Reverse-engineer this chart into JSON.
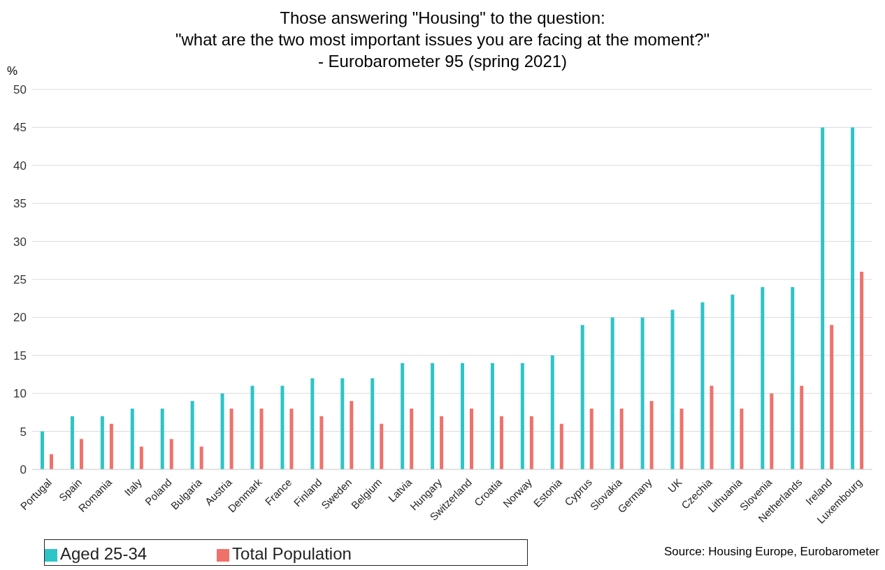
{
  "chart_data": {
    "type": "bar",
    "title": "Those answering \"Housing\" to the question:\n\"what are the two most important issues you are facing at the moment?\"\n- Eurobarometer 95 (spring 2021)",
    "ylabel": "%",
    "categories": [
      "Portugal",
      "Spain",
      "Romania",
      "Italy",
      "Poland",
      "Bulgaria",
      "Austria",
      "Denmark",
      "France",
      "Finland",
      "Sweden",
      "Belgium",
      "Latvia",
      "Hungary",
      "Switzerland",
      "Croatia",
      "Norway",
      "Estonia",
      "Cyprus",
      "Slovakia",
      "Germany",
      "UK",
      "Czechia",
      "Lithuania",
      "Slovenia",
      "Netherlands",
      "Ireland",
      "Luxembourg"
    ],
    "series": [
      {
        "name": "Aged 25-34",
        "color": "#2ec4c8",
        "values": [
          5,
          7,
          7,
          8,
          8,
          9,
          10,
          11,
          11,
          12,
          12,
          12,
          14,
          14,
          14,
          14,
          14,
          15,
          19,
          20,
          20,
          21,
          22,
          23,
          24,
          24,
          45,
          45
        ]
      },
      {
        "name": "Total Population",
        "color": "#f0716c",
        "values": [
          2,
          4,
          6,
          3,
          4,
          3,
          8,
          8,
          8,
          7,
          9,
          6,
          8,
          7,
          8,
          7,
          7,
          6,
          8,
          8,
          9,
          8,
          11,
          8,
          10,
          11,
          19,
          26
        ]
      }
    ],
    "ylim": [
      0,
      50
    ],
    "yticks": [
      0,
      5,
      10,
      15,
      20,
      25,
      30,
      35,
      40,
      45,
      50
    ],
    "grid": "y",
    "legend": "bottom left",
    "annotations": [
      "Source: Housing Europe, Eurobarometer"
    ]
  }
}
